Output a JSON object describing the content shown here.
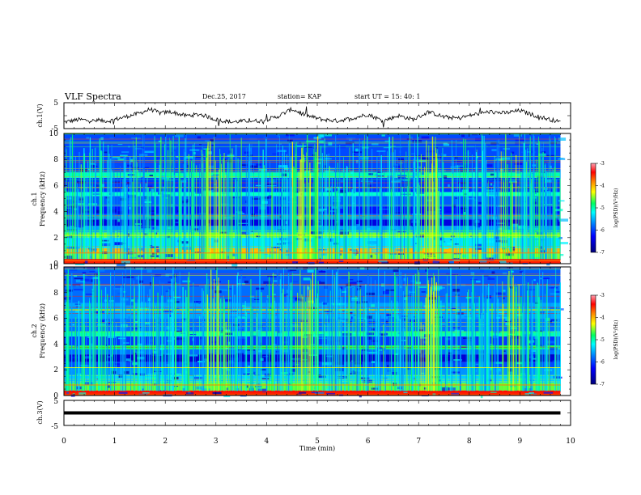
{
  "header": {
    "title": "VLF Spectra",
    "date": "Dec.25, 2017",
    "station": "station= KAP",
    "start": "start  UT =   15: 40: 1"
  },
  "colors": {
    "waveform": "#000000",
    "colormap": [
      "#00007a",
      "#0000ff",
      "#007fff",
      "#00ffff",
      "#00ff60",
      "#ffff00",
      "#ff8000",
      "#ff0000",
      "#ff9fb0"
    ]
  },
  "chart_data": [
    {
      "type": "line",
      "ylabel": "ch.1(V)",
      "ylim": [
        -5,
        5
      ],
      "yticks": [
        "5",
        "-5"
      ],
      "xlim": [
        0,
        10
      ],
      "series": [
        {
          "x": [
            0.0,
            0.3,
            0.6,
            0.9,
            1.2,
            1.5,
            1.7,
            1.9,
            2.1,
            2.4,
            2.7,
            3.0,
            3.3,
            3.6,
            3.9,
            4.2,
            4.5,
            4.8,
            5.1,
            5.4,
            5.7,
            6.0,
            6.3,
            6.6,
            6.9,
            7.2,
            7.5,
            7.8,
            8.1,
            8.4,
            8.7,
            9.0,
            9.3,
            9.6,
            9.8
          ],
          "values": [
            -2.5,
            -1.5,
            -2.0,
            -2.0,
            -0.5,
            1.0,
            2.5,
            1.0,
            1.5,
            0.0,
            0.5,
            -1.5,
            -2.5,
            -2.0,
            -2.0,
            -0.5,
            2.5,
            0.0,
            -1.5,
            -2.0,
            -1.0,
            0.5,
            -2.0,
            0.0,
            -1.5,
            1.5,
            -0.5,
            -1.0,
            0.5,
            1.5,
            1.0,
            2.0,
            0.0,
            -1.5,
            -2.5
          ]
        }
      ]
    },
    {
      "type": "heatmap",
      "ylabel": "ch.1",
      "ylabel2": "Frequency (kHz)",
      "ylim": [
        0,
        10
      ],
      "yticks": [
        "0",
        "2",
        "4",
        "6",
        "8",
        "10"
      ],
      "xlim": [
        0,
        10
      ],
      "colorbar": {
        "label": "log(PSD)(V²/Hz)",
        "range": [
          -7,
          -3
        ],
        "ticks": [
          "-3",
          "-4",
          "-5",
          "-6",
          "-7"
        ]
      }
    },
    {
      "type": "heatmap",
      "ylabel": "ch.2",
      "ylabel2": "Frequency (kHz)",
      "ylim": [
        0,
        10
      ],
      "yticks": [
        "0",
        "2",
        "4",
        "6",
        "8",
        "10"
      ],
      "xlim": [
        0,
        10
      ],
      "colorbar": {
        "label": "log(PSD)(V²/Hz)",
        "range": [
          -7,
          -3
        ],
        "ticks": [
          "-3",
          "-4",
          "-5",
          "-6",
          "-7"
        ]
      }
    },
    {
      "type": "line",
      "ylabel": "ch.3(V)",
      "ylim": [
        -5,
        5
      ],
      "yticks": [
        "5",
        "-5"
      ],
      "xlim": [
        0,
        10
      ],
      "xlabel": "Time (min)",
      "xticks": [
        "0",
        "1",
        "2",
        "3",
        "4",
        "5",
        "6",
        "7",
        "8",
        "9",
        "10"
      ],
      "series": [
        {
          "x": [
            0.0,
            9.8
          ],
          "values": [
            0.0,
            0.0
          ]
        }
      ]
    }
  ]
}
